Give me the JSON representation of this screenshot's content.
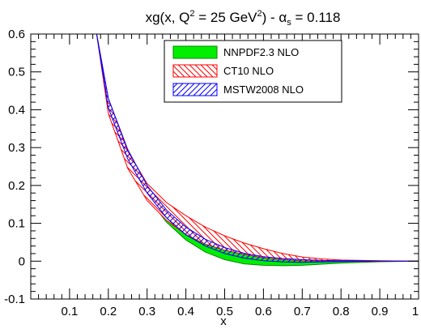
{
  "chart_data": {
    "type": "area",
    "title": {
      "prefix": "xg(x, Q",
      "sup1": "2",
      "middle": " = 25 GeV",
      "sup2": "2",
      "mid2": ") - α",
      "sub": "s",
      "suffix": " = 0.118"
    },
    "xlabel": "x",
    "ylabel": "",
    "xlim": [
      0.0,
      1.0
    ],
    "ylim": [
      -0.1,
      0.6
    ],
    "xticks": [
      0.1,
      0.2,
      0.3,
      0.4,
      0.5,
      0.6,
      0.7,
      0.8,
      0.9,
      1.0
    ],
    "xtick_labels": [
      "0.1",
      "0.2",
      "0.3",
      "0.4",
      "0.5",
      "0.6",
      "0.7",
      "0.8",
      "0.9",
      "1"
    ],
    "yticks": [
      -0.1,
      0.0,
      0.1,
      0.2,
      0.3,
      0.4,
      0.5,
      0.6
    ],
    "ytick_labels": [
      "-0.1",
      "0",
      "0.1",
      "0.2",
      "0.3",
      "0.4",
      "0.5",
      "0.6"
    ],
    "grid": false,
    "legend_position": "top-right",
    "series": [
      {
        "name": "NNPDF2.3 NLO",
        "color": "#00ee00",
        "edge_color": "#008800",
        "style": "solid",
        "x": [
          0.17,
          0.2,
          0.25,
          0.3,
          0.35,
          0.4,
          0.45,
          0.5,
          0.55,
          0.6,
          0.65,
          0.7,
          0.75,
          0.8,
          0.9,
          1.0
        ],
        "upper": [
          0.6,
          0.42,
          0.285,
          0.195,
          0.13,
          0.085,
          0.055,
          0.033,
          0.018,
          0.01,
          0.007,
          0.005,
          0.003,
          0.002,
          0.0005,
          0.0
        ],
        "lower": [
          0.6,
          0.395,
          0.26,
          0.17,
          0.103,
          0.056,
          0.024,
          0.004,
          -0.007,
          -0.011,
          -0.012,
          -0.011,
          -0.008,
          -0.005,
          -0.0015,
          0.0
        ]
      },
      {
        "name": "CT10 NLO",
        "color": "#ff0000",
        "edge_color": "#ff0000",
        "style": "hatch-backslash",
        "x": [
          0.17,
          0.2,
          0.25,
          0.3,
          0.35,
          0.4,
          0.45,
          0.5,
          0.55,
          0.6,
          0.65,
          0.7,
          0.75,
          0.8,
          0.9,
          1.0
        ],
        "upper": [
          0.6,
          0.43,
          0.29,
          0.205,
          0.155,
          0.12,
          0.09,
          0.067,
          0.048,
          0.033,
          0.02,
          0.011,
          0.006,
          0.003,
          0.001,
          0.0
        ],
        "lower": [
          0.6,
          0.39,
          0.245,
          0.16,
          0.108,
          0.07,
          0.045,
          0.029,
          0.018,
          0.009,
          0.004,
          0.001,
          0.0,
          0.0,
          0.0,
          0.0
        ]
      },
      {
        "name": "MSTW2008 NLO",
        "color": "#0000ff",
        "edge_color": "#0000ff",
        "style": "hatch-slash",
        "x": [
          0.17,
          0.2,
          0.25,
          0.3,
          0.35,
          0.4,
          0.45,
          0.5,
          0.55,
          0.6,
          0.65,
          0.7,
          0.75,
          0.8,
          0.9,
          1.0
        ],
        "upper": [
          0.6,
          0.43,
          0.295,
          0.2,
          0.135,
          0.09,
          0.058,
          0.036,
          0.021,
          0.012,
          0.007,
          0.004,
          0.002,
          0.001,
          0.0003,
          0.0
        ],
        "lower": [
          0.6,
          0.405,
          0.27,
          0.18,
          0.115,
          0.07,
          0.04,
          0.02,
          0.008,
          0.001,
          -0.002,
          -0.003,
          -0.002,
          -0.001,
          0.0,
          0.0
        ]
      }
    ]
  }
}
